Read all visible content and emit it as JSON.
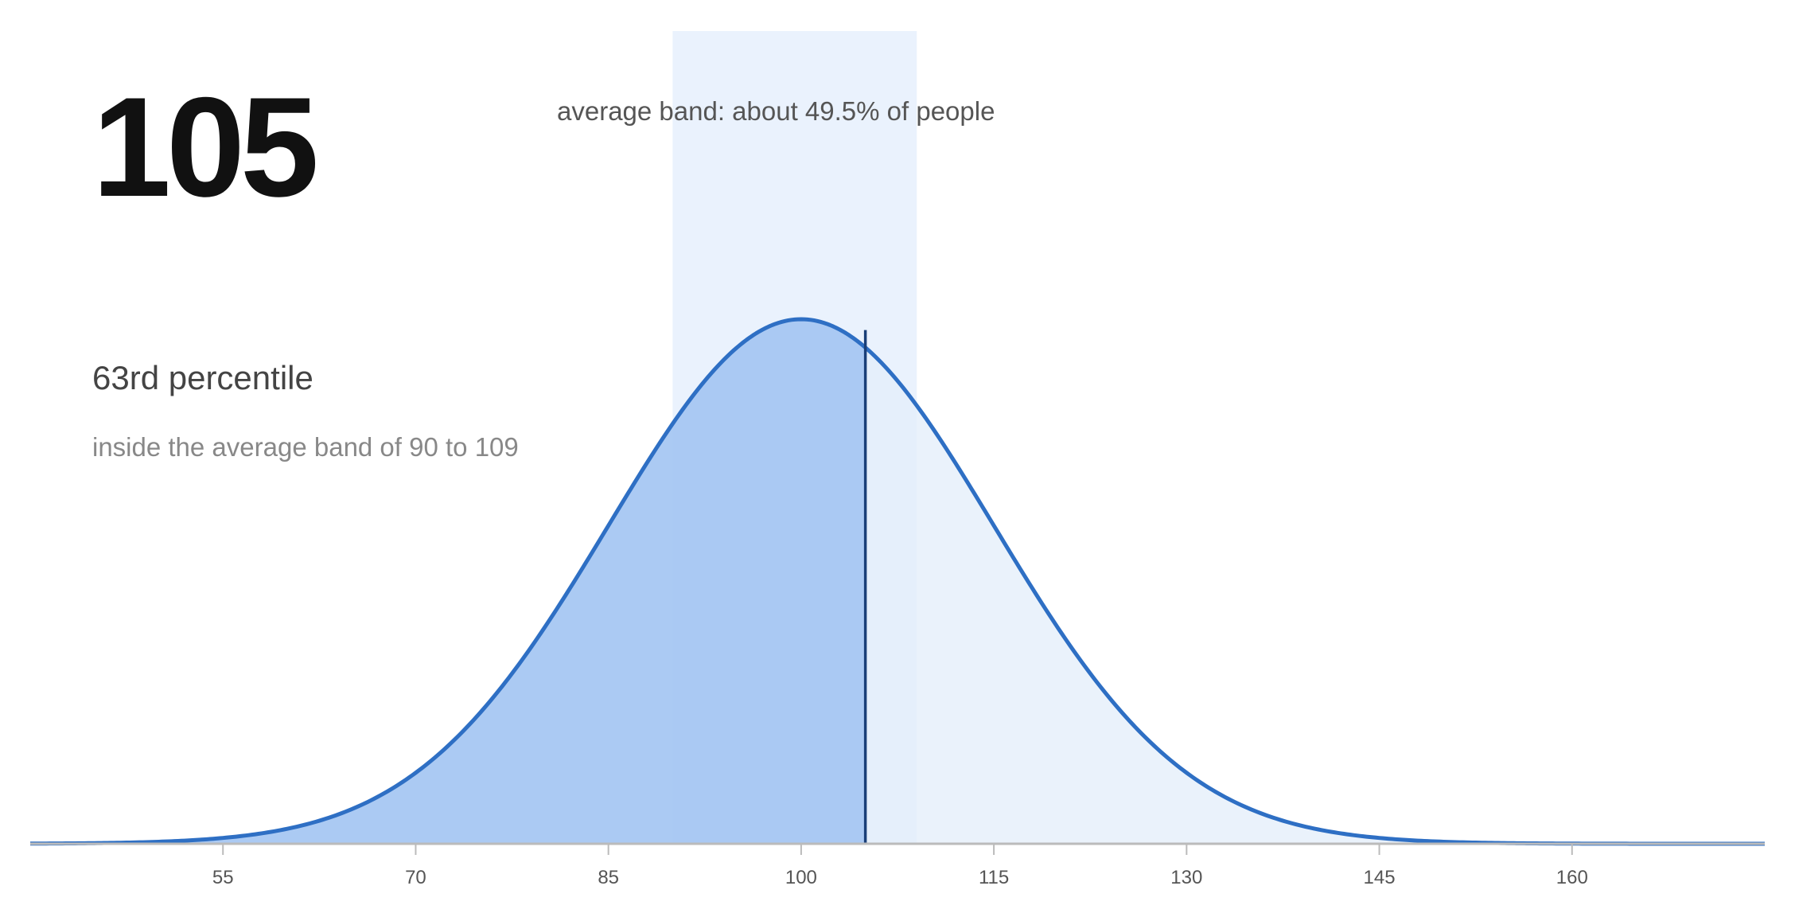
{
  "score": "105",
  "percentile_text": "63rd percentile",
  "band_note": "inside the average band of 90 to 109",
  "band_caption": "average band: about 49.5% of people",
  "colors": {
    "curve": "#2e6fc4",
    "fill_left": "#a4c6f2",
    "fill_right": "#e3edfa",
    "band": "#eaf2fd",
    "marker": "#1a3f78",
    "axis": "#bbbbbb"
  },
  "chart_data": {
    "type": "area",
    "distribution": "normal",
    "mean": 100,
    "sd": 15,
    "xlim": [
      40,
      175
    ],
    "x_ticks": [
      55,
      70,
      85,
      100,
      115,
      130,
      145,
      160
    ],
    "band": [
      90,
      109
    ],
    "marker": 105,
    "grid": false,
    "legend": "none"
  }
}
